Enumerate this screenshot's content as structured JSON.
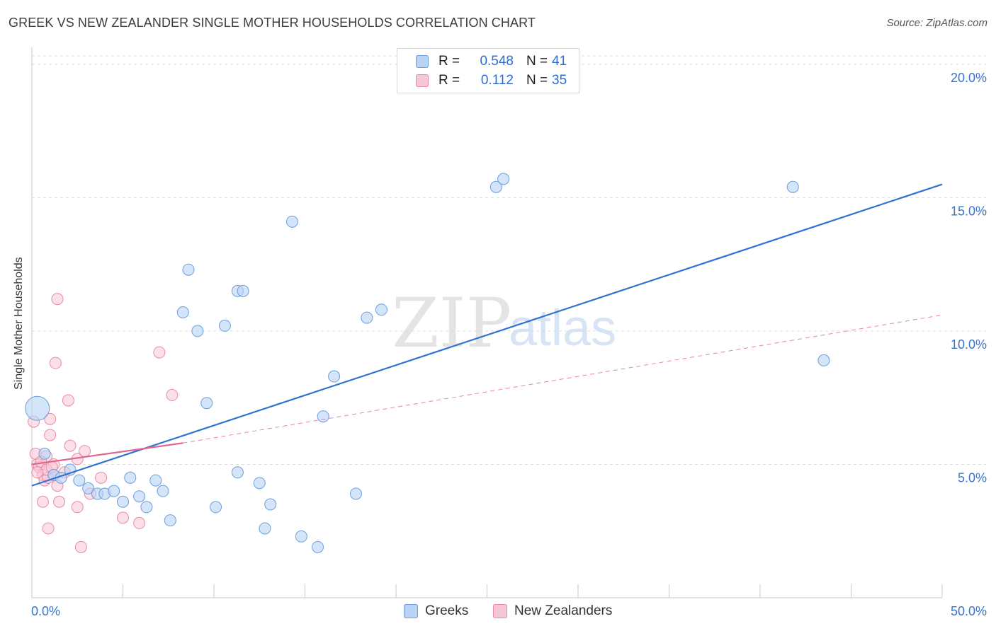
{
  "title": "GREEK VS NEW ZEALANDER SINGLE MOTHER HOUSEHOLDS CORRELATION CHART",
  "source": "Source: ZipAtlas.com",
  "watermark": {
    "zip": "ZIP",
    "atlas": "atlas"
  },
  "colors": {
    "blue_fill": "#b9d3f5",
    "blue_stroke": "#6a9ede",
    "blue_line": "#2f72d4",
    "pink_fill": "#f7c6d6",
    "pink_stroke": "#e98aaa",
    "pink_line": "#e0668f",
    "tick_label": "#3a73cc",
    "grid": "#dddddd"
  },
  "legend": {
    "rows": [
      {
        "r_label": "R =",
        "r_value": "0.548",
        "n_label": "N =",
        "n_value": "41"
      },
      {
        "r_label": "R =",
        "r_value": "0.112",
        "n_label": "N =",
        "n_value": "35"
      }
    ]
  },
  "bottom_legend": {
    "greeks": "Greeks",
    "new_zealanders": "New Zealanders"
  },
  "chart_data": {
    "type": "scatter",
    "title": "GREEK VS NEW ZEALANDER SINGLE MOTHER HOUSEHOLDS CORRELATION CHART",
    "xlabel": "",
    "ylabel": "Single Mother Households",
    "xlim": [
      0,
      50
    ],
    "ylim": [
      0,
      20.5
    ],
    "x_tick_labels": [
      "0.0%",
      "50.0%"
    ],
    "y_ticks": [
      5,
      10,
      15,
      20
    ],
    "y_tick_labels": [
      "5.0%",
      "10.0%",
      "15.0%",
      "20.0%"
    ],
    "series": [
      {
        "name": "Greeks",
        "r": 0.548,
        "n": 41,
        "trend": {
          "x": [
            0,
            50
          ],
          "y": [
            4.2,
            15.5
          ],
          "style": "solid"
        },
        "points": [
          {
            "x": 0.3,
            "y": 7.1,
            "big": true
          },
          {
            "x": 0.7,
            "y": 5.4
          },
          {
            "x": 1.2,
            "y": 4.6
          },
          {
            "x": 1.6,
            "y": 4.5
          },
          {
            "x": 2.1,
            "y": 4.8
          },
          {
            "x": 2.6,
            "y": 4.4
          },
          {
            "x": 3.1,
            "y": 4.1
          },
          {
            "x": 3.6,
            "y": 3.9
          },
          {
            "x": 4.0,
            "y": 3.9
          },
          {
            "x": 4.5,
            "y": 4.0
          },
          {
            "x": 5.0,
            "y": 3.6
          },
          {
            "x": 5.4,
            "y": 4.5
          },
          {
            "x": 5.9,
            "y": 3.8
          },
          {
            "x": 6.3,
            "y": 3.4
          },
          {
            "x": 6.8,
            "y": 4.4
          },
          {
            "x": 7.2,
            "y": 4.0
          },
          {
            "x": 7.6,
            "y": 2.9
          },
          {
            "x": 8.3,
            "y": 10.7
          },
          {
            "x": 8.6,
            "y": 12.3
          },
          {
            "x": 9.1,
            "y": 10.0
          },
          {
            "x": 9.6,
            "y": 7.3
          },
          {
            "x": 10.1,
            "y": 3.4
          },
          {
            "x": 10.6,
            "y": 10.2
          },
          {
            "x": 11.3,
            "y": 4.7
          },
          {
            "x": 11.3,
            "y": 11.5
          },
          {
            "x": 11.6,
            "y": 11.5
          },
          {
            "x": 12.5,
            "y": 4.3
          },
          {
            "x": 12.8,
            "y": 2.6
          },
          {
            "x": 13.1,
            "y": 3.5
          },
          {
            "x": 14.3,
            "y": 14.1
          },
          {
            "x": 14.8,
            "y": 2.3
          },
          {
            "x": 15.7,
            "y": 1.9
          },
          {
            "x": 16.0,
            "y": 6.8
          },
          {
            "x": 16.6,
            "y": 8.3
          },
          {
            "x": 17.8,
            "y": 3.9
          },
          {
            "x": 18.4,
            "y": 10.5
          },
          {
            "x": 19.2,
            "y": 10.8
          },
          {
            "x": 25.5,
            "y": 15.4
          },
          {
            "x": 25.9,
            "y": 15.7
          },
          {
            "x": 41.8,
            "y": 15.4
          },
          {
            "x": 43.5,
            "y": 8.9
          }
        ]
      },
      {
        "name": "New Zealanders",
        "r": 0.112,
        "n": 35,
        "trend": {
          "x": [
            0,
            8.3
          ],
          "y": [
            5.0,
            5.8
          ],
          "style": "solid"
        },
        "trend_ext": {
          "x": [
            8.3,
            50
          ],
          "y": [
            5.8,
            10.6
          ],
          "style": "dashed"
        },
        "points": [
          {
            "x": 0.1,
            "y": 6.6
          },
          {
            "x": 0.2,
            "y": 5.4
          },
          {
            "x": 0.3,
            "y": 5.0
          },
          {
            "x": 0.4,
            "y": 4.9
          },
          {
            "x": 0.6,
            "y": 4.6
          },
          {
            "x": 0.7,
            "y": 4.4
          },
          {
            "x": 0.6,
            "y": 3.6
          },
          {
            "x": 0.8,
            "y": 5.3
          },
          {
            "x": 0.9,
            "y": 2.6
          },
          {
            "x": 0.9,
            "y": 4.5
          },
          {
            "x": 1.0,
            "y": 6.7
          },
          {
            "x": 1.0,
            "y": 6.1
          },
          {
            "x": 1.2,
            "y": 4.6
          },
          {
            "x": 1.2,
            "y": 5.0
          },
          {
            "x": 1.3,
            "y": 8.8
          },
          {
            "x": 1.4,
            "y": 4.2
          },
          {
            "x": 1.5,
            "y": 3.6
          },
          {
            "x": 1.4,
            "y": 11.2
          },
          {
            "x": 1.8,
            "y": 4.7
          },
          {
            "x": 2.0,
            "y": 7.4
          },
          {
            "x": 2.1,
            "y": 5.7
          },
          {
            "x": 2.5,
            "y": 3.4
          },
          {
            "x": 2.5,
            "y": 5.2
          },
          {
            "x": 2.7,
            "y": 1.9
          },
          {
            "x": 2.9,
            "y": 5.5
          },
          {
            "x": 3.2,
            "y": 3.9
          },
          {
            "x": 3.8,
            "y": 4.5
          },
          {
            "x": 5.0,
            "y": 3.0
          },
          {
            "x": 5.9,
            "y": 2.8
          },
          {
            "x": 7.0,
            "y": 9.2
          },
          {
            "x": 7.7,
            "y": 7.6
          },
          {
            "x": 0.5,
            "y": 5.1
          },
          {
            "x": 0.8,
            "y": 4.8
          },
          {
            "x": 1.1,
            "y": 4.9
          },
          {
            "x": 0.3,
            "y": 4.7
          }
        ]
      }
    ],
    "legend_position": "top-center",
    "grid": true
  }
}
